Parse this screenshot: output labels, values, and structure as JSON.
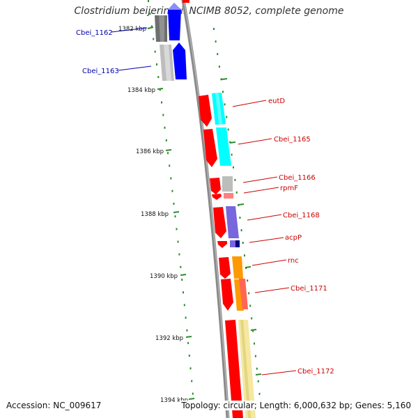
{
  "title": "Clostridium beijerinckii NCIMB 8052, complete genome",
  "footer": {
    "accession": "Accession: NC_009617",
    "summary": "Topology: circular; Length: 6,000,632 bp; Genes: 5,160"
  },
  "ticks": [
    {
      "label": "1382 kbp"
    },
    {
      "label": "1384 kbp"
    },
    {
      "label": "1386 kbp"
    },
    {
      "label": "1388 kbp"
    },
    {
      "label": "1390 kbp"
    },
    {
      "label": "1392 kbp"
    },
    {
      "label": "1394 kbp"
    }
  ],
  "genes": [
    {
      "name": "Cbei_1162",
      "color": "#0000aa"
    },
    {
      "name": "Cbei_1163",
      "color": "#0000aa"
    },
    {
      "name": "eutD",
      "color": "#cc0000"
    },
    {
      "name": "Cbei_1165",
      "color": "#cc0000"
    },
    {
      "name": "Cbei_1166",
      "color": "#cc0000"
    },
    {
      "name": "rpmF",
      "color": "#cc0000"
    },
    {
      "name": "Cbei_1168",
      "color": "#cc0000"
    },
    {
      "name": "acpP",
      "color": "#cc0000"
    },
    {
      "name": "rnc",
      "color": "#cc0000"
    },
    {
      "name": "Cbei_1171",
      "color": "#cc0000"
    },
    {
      "name": "Cbei_1172",
      "color": "#cc0000"
    }
  ],
  "colors": {
    "backbone": "#8a8a8a",
    "tick": "#2e8b2e",
    "forward_strand": "#0000ff",
    "reverse_strand": "#ff0000",
    "cyan_category": "#00ffff",
    "gray_category": "#bbbbbb",
    "purple_category": "#7766dd",
    "orange_category": "#ff9900",
    "yellow_category": "#f5e8a0"
  }
}
